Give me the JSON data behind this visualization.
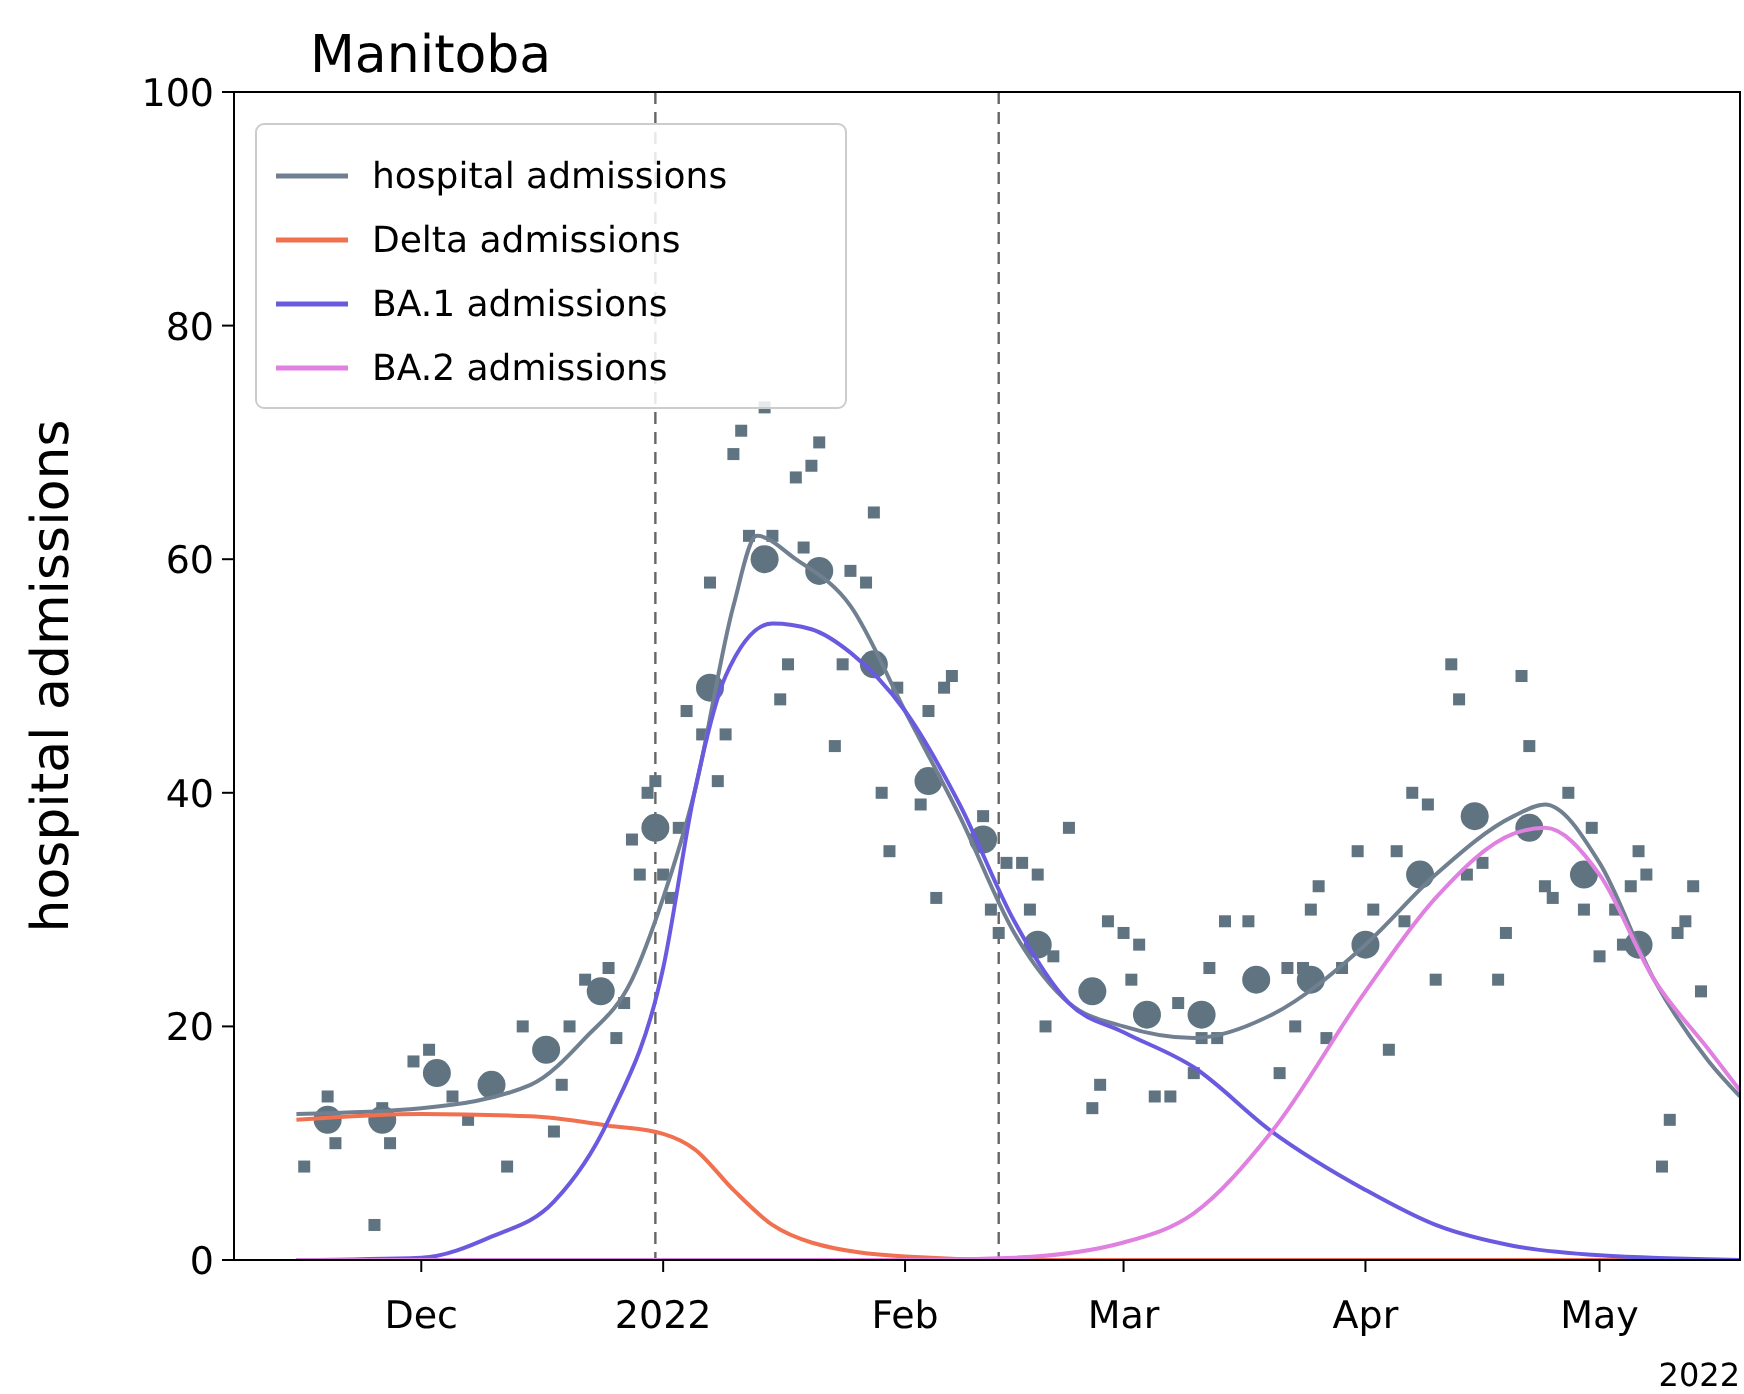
{
  "chart_data": {
    "type": "line",
    "title": "Manitoba",
    "ylabel": "hospital admissions",
    "annotations": [
      "2022"
    ],
    "xlim": [
      "2021-11-07",
      "2022-05-19"
    ],
    "xticks": [
      {
        "value": "2021-12-01",
        "label": "Dec"
      },
      {
        "value": "2022-01-01",
        "label": "2022"
      },
      {
        "value": "2022-02-01",
        "label": "Feb"
      },
      {
        "value": "2022-03-01",
        "label": "Mar"
      },
      {
        "value": "2022-04-01",
        "label": "Apr"
      },
      {
        "value": "2022-05-01",
        "label": "May"
      }
    ],
    "ylim": [
      0,
      100
    ],
    "yticks": [
      0,
      20,
      40,
      60,
      80,
      100
    ],
    "grid": false,
    "legend": "top left",
    "ref_lines": [
      {
        "axis": "x",
        "value": "2021-12-31",
        "color": "#666666",
        "line_style": "dashed"
      },
      {
        "axis": "x",
        "value": "2022-02-13",
        "color": "#666666",
        "line_style": "dashed"
      }
    ],
    "series": [
      {
        "type": "scatter",
        "marker": "square",
        "color": "#5f7480",
        "x": [
          "2021-11-16",
          "2021-11-19",
          "2021-11-20",
          "2021-11-25",
          "2021-11-26",
          "2021-11-27",
          "2021-11-30",
          "2021-12-02",
          "2021-12-05",
          "2021-12-07",
          "2021-12-12",
          "2021-12-14",
          "2021-12-18",
          "2021-12-19",
          "2021-12-20",
          "2021-12-22",
          "2021-12-25",
          "2021-12-26",
          "2021-12-27",
          "2021-12-28",
          "2021-12-29",
          "2021-12-30",
          "2021-12-31",
          "2022-01-01",
          "2022-01-02",
          "2022-01-03",
          "2022-01-04",
          "2022-01-06",
          "2022-01-07",
          "2022-01-08",
          "2022-01-09",
          "2022-01-10",
          "2022-01-11",
          "2022-01-12",
          "2022-01-14",
          "2022-01-15",
          "2022-01-16",
          "2022-01-17",
          "2022-01-18",
          "2022-01-19",
          "2022-01-20",
          "2022-01-21",
          "2022-01-23",
          "2022-01-24",
          "2022-01-25",
          "2022-01-27",
          "2022-01-28",
          "2022-01-29",
          "2022-01-30",
          "2022-01-31",
          "2022-02-03",
          "2022-02-04",
          "2022-02-05",
          "2022-02-06",
          "2022-02-07",
          "2022-02-11",
          "2022-02-12",
          "2022-02-13",
          "2022-02-14",
          "2022-02-16",
          "2022-02-17",
          "2022-02-18",
          "2022-02-19",
          "2022-02-20",
          "2022-02-22",
          "2022-02-25",
          "2022-02-26",
          "2022-02-27",
          "2022-03-01",
          "2022-03-02",
          "2022-03-03",
          "2022-03-05",
          "2022-03-07",
          "2022-03-08",
          "2022-03-10",
          "2022-03-11",
          "2022-03-12",
          "2022-03-13",
          "2022-03-14",
          "2022-03-17",
          "2022-03-21",
          "2022-03-22",
          "2022-03-23",
          "2022-03-24",
          "2022-03-25",
          "2022-03-26",
          "2022-03-27",
          "2022-03-29",
          "2022-03-31",
          "2022-04-02",
          "2022-04-04",
          "2022-04-05",
          "2022-04-06",
          "2022-04-07",
          "2022-04-09",
          "2022-04-10",
          "2022-04-12",
          "2022-04-13",
          "2022-04-14",
          "2022-04-16",
          "2022-04-18",
          "2022-04-19",
          "2022-04-21",
          "2022-04-22",
          "2022-04-24",
          "2022-04-25",
          "2022-04-27",
          "2022-04-29",
          "2022-04-30",
          "2022-05-01",
          "2022-05-03",
          "2022-05-04",
          "2022-05-05",
          "2022-05-06",
          "2022-05-07",
          "2022-05-09",
          "2022-05-10",
          "2022-05-11",
          "2022-05-12",
          "2022-05-13",
          "2022-05-14"
        ],
        "values": [
          8,
          14,
          10,
          3,
          13,
          10,
          17,
          18,
          14,
          12,
          8,
          20,
          11,
          15,
          20,
          24,
          25,
          19,
          22,
          36,
          33,
          40,
          41,
          33,
          31,
          37,
          47,
          45,
          58,
          41,
          45,
          69,
          71,
          62,
          73,
          62,
          48,
          51,
          67,
          61,
          68,
          70,
          44,
          51,
          59,
          58,
          64,
          40,
          35,
          49,
          39,
          47,
          31,
          49,
          50,
          38,
          30,
          28,
          34,
          34,
          30,
          33,
          20,
          26,
          37,
          13,
          15,
          29,
          28,
          24,
          27,
          14,
          14,
          22,
          16,
          19,
          25,
          19,
          29,
          29,
          16,
          25,
          20,
          25,
          30,
          32,
          19,
          25,
          35,
          30,
          18,
          35,
          29,
          40,
          39,
          24,
          51,
          48,
          33,
          34,
          24,
          28,
          50,
          44,
          32,
          31,
          40,
          30,
          37,
          26,
          30,
          27,
          32,
          35,
          33,
          8,
          12,
          28,
          29,
          32,
          23
        ]
      },
      {
        "type": "scatter",
        "marker": "circle",
        "color": "#5f7480",
        "x": [
          "2021-11-19",
          "2021-11-26",
          "2021-12-03",
          "2021-12-10",
          "2021-12-17",
          "2021-12-24",
          "2021-12-31",
          "2022-01-07",
          "2022-01-14",
          "2022-01-21",
          "2022-01-28",
          "2022-02-04",
          "2022-02-11",
          "2022-02-18",
          "2022-02-25",
          "2022-03-04",
          "2022-03-11",
          "2022-03-18",
          "2022-03-25",
          "2022-04-01",
          "2022-04-08",
          "2022-04-15",
          "2022-04-22",
          "2022-04-29",
          "2022-05-06"
        ],
        "values": [
          12,
          12,
          16,
          15,
          18,
          23,
          37,
          49,
          60,
          59,
          51,
          41,
          36,
          27,
          23,
          21,
          21,
          24,
          24,
          27,
          33,
          38,
          37,
          33,
          27
        ]
      },
      {
        "name": "hospital admissions",
        "marker": "none",
        "color": "#708090",
        "x": [
          "2021-11-15",
          "2021-12-01",
          "2021-12-15",
          "2021-12-22",
          "2021-12-28",
          "2022-01-01",
          "2022-01-05",
          "2022-01-10",
          "2022-01-13",
          "2022-01-18",
          "2022-01-25",
          "2022-02-01",
          "2022-02-08",
          "2022-02-15",
          "2022-02-22",
          "2022-03-01",
          "2022-03-10",
          "2022-03-20",
          "2022-04-01",
          "2022-04-10",
          "2022-04-20",
          "2022-04-24",
          "2022-05-01",
          "2022-05-08",
          "2022-05-15",
          "2022-05-19"
        ],
        "values": [
          12.5,
          13,
          15,
          19,
          24,
          31,
          40,
          56,
          62,
          60,
          56,
          47,
          38,
          28,
          22,
          20,
          19,
          21,
          27,
          33,
          38,
          39,
          34,
          24,
          17,
          14
        ]
      },
      {
        "name": "Delta admissions",
        "marker": "none",
        "color": "#f07050",
        "x": [
          "2021-11-15",
          "2021-12-01",
          "2021-12-15",
          "2021-12-25",
          "2022-01-01",
          "2022-01-05",
          "2022-01-10",
          "2022-01-15",
          "2022-01-20",
          "2022-02-01",
          "2022-02-15",
          "2022-05-19"
        ],
        "values": [
          12,
          12.5,
          12.3,
          11.5,
          10.8,
          9.5,
          6,
          3,
          1.5,
          0.3,
          0,
          0
        ]
      },
      {
        "name": "BA.1 admissions",
        "marker": "none",
        "color": "#6a5ae0",
        "x": [
          "2021-11-15",
          "2021-12-01",
          "2021-12-10",
          "2021-12-18",
          "2021-12-25",
          "2022-01-01",
          "2022-01-05",
          "2022-01-09",
          "2022-01-15",
          "2022-01-20",
          "2022-01-25",
          "2022-02-01",
          "2022-02-08",
          "2022-02-15",
          "2022-02-22",
          "2022-03-01",
          "2022-03-10",
          "2022-03-20",
          "2022-04-01",
          "2022-04-10",
          "2022-04-20",
          "2022-05-01",
          "2022-05-19"
        ],
        "values": [
          0,
          0.2,
          2,
          5,
          12,
          25,
          40,
          50,
          54.5,
          54,
          52,
          47,
          39,
          29,
          22,
          19.5,
          16.5,
          11,
          6,
          3,
          1.2,
          0.4,
          0
        ]
      },
      {
        "name": "BA.2 admissions",
        "marker": "none",
        "color": "#e080e0",
        "x": [
          "2021-11-15",
          "2022-02-01",
          "2022-02-15",
          "2022-03-01",
          "2022-03-10",
          "2022-03-20",
          "2022-04-01",
          "2022-04-10",
          "2022-04-20",
          "2022-04-24",
          "2022-05-01",
          "2022-05-08",
          "2022-05-15",
          "2022-05-19"
        ],
        "values": [
          0,
          0,
          0.2,
          1.5,
          4,
          11,
          23,
          31,
          36.5,
          37,
          33,
          24,
          18,
          14.5
        ]
      }
    ]
  }
}
